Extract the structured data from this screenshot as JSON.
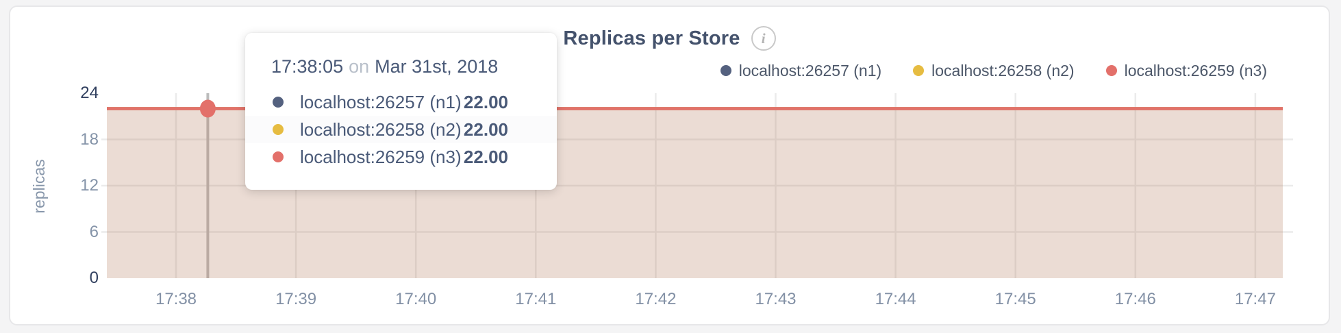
{
  "colors": {
    "page_bg": "#f4f4f5",
    "card_bg": "#ffffff",
    "card_border": "#e7e7e9",
    "title": "#44526c",
    "grid": "#ebebeb",
    "crosshair": "#bcbcbc",
    "tick_light": "#8493a8",
    "tick_dark": "#31405f"
  },
  "title": {
    "text": "Replicas per Store",
    "info_icon": "i"
  },
  "legend": {
    "items": [
      {
        "label": "localhost:26257 (n1)",
        "color": "#54617f"
      },
      {
        "label": "localhost:26258 (n2)",
        "color": "#e6bc41"
      },
      {
        "label": "localhost:26259 (n3)",
        "color": "#e3706a"
      }
    ]
  },
  "tooltip": {
    "time": "17:38:05",
    "on_word": "on",
    "date": "Mar 31st, 2018",
    "rows": [
      {
        "label": "localhost:26257 (n1)",
        "value": "22.00",
        "color": "#54617f"
      },
      {
        "label": "localhost:26258 (n2)",
        "value": "22.00",
        "color": "#e6bc41"
      },
      {
        "label": "localhost:26259 (n3)",
        "value": "22.00",
        "color": "#e3706a"
      }
    ]
  },
  "chart_data": {
    "type": "area",
    "title": "Replicas per Store",
    "ylabel": "replicas",
    "xlabel": "",
    "ylim": [
      0,
      24
    ],
    "yticks": [
      24,
      18,
      12,
      6,
      0
    ],
    "x": [
      "17:38",
      "17:39",
      "17:40",
      "17:41",
      "17:42",
      "17:43",
      "17:44",
      "17:45",
      "17:46",
      "17:47"
    ],
    "series": [
      {
        "name": "localhost:26257 (n1)",
        "color": "#54617f",
        "value": 22
      },
      {
        "name": "localhost:26258 (n2)",
        "color": "#e6bc41",
        "value": 22
      },
      {
        "name": "localhost:26259 (n3)",
        "color": "#e3706a",
        "value": 22
      }
    ],
    "fill_opacity": 0.1,
    "grid": true,
    "legend_position": "top-right",
    "hover": {
      "time": "17:38:05",
      "date": "Mar 31st, 2018",
      "value": 22,
      "x_tick_index": 0,
      "x_tick_fraction": 0.265,
      "marker_color": "#e3706a"
    }
  }
}
